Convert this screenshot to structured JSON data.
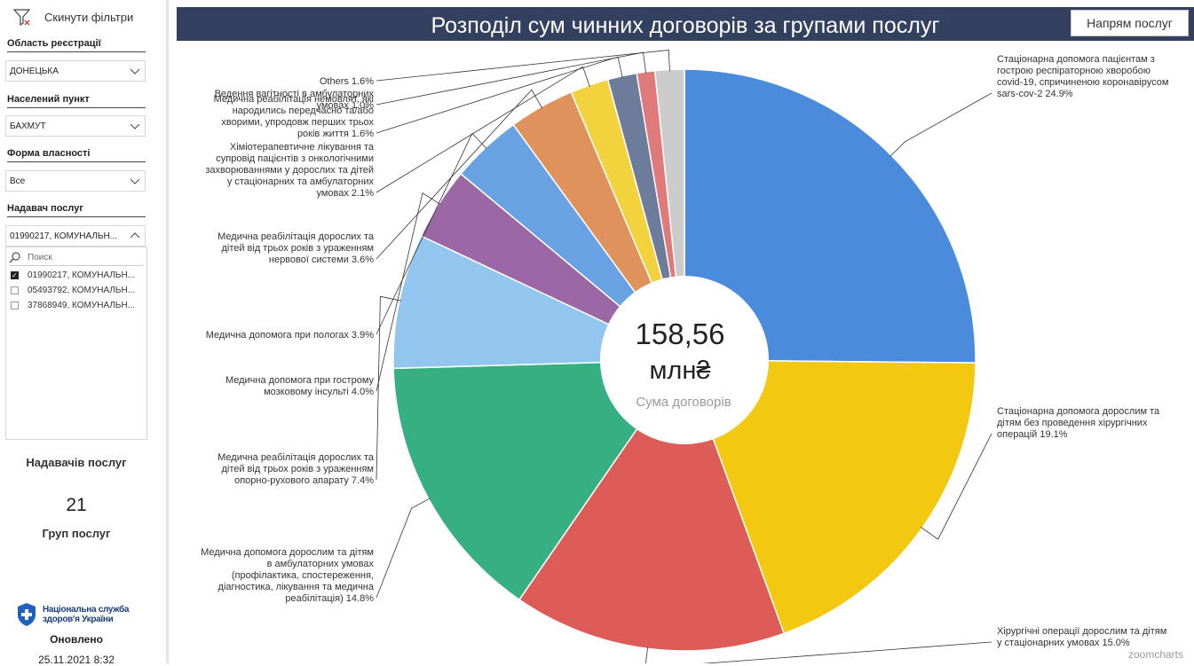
{
  "sidebar": {
    "reset_label": "Скинути фільтри",
    "filters": [
      {
        "label": "Область реєстрації",
        "value": "ДОНЕЦЬКА"
      },
      {
        "label": "Населений пункт",
        "value": "БАХМУТ"
      },
      {
        "label": "Форма власності",
        "value": "Все"
      },
      {
        "label": "Надавач послуг",
        "value": "01990217, КОМУНАЛЬН..."
      }
    ],
    "search_placeholder": "Поиск",
    "options": [
      {
        "label": "01990217, КОМУНАЛЬН...",
        "checked": true
      },
      {
        "label": "05493792, КОМУНАЛЬН...",
        "checked": false
      },
      {
        "label": "37868949, КОМУНАЛЬН...",
        "checked": false
      }
    ],
    "kpi_providers_label": "Надавачів послуг",
    "kpi_groups_value": "21",
    "kpi_groups_label": "Груп послуг",
    "logo_text_1": "Національна служба",
    "logo_text_2": "здоров'я України",
    "updated_label": "Оновлено",
    "updated_value": "25.11.2021 8:32"
  },
  "chart": {
    "title": "Розподіл сум чинних договорів за групами послуг",
    "button_label": "Напрям послуг",
    "center_value_1": "158,56",
    "center_value_2": "млн₴",
    "center_caption": "Сума договорів",
    "watermark": "zoomcharts"
  },
  "chart_data": {
    "type": "pie",
    "title": "Розподіл сум чинних договорів за групами послуг",
    "total": "158,56 млн₴",
    "slices": [
      {
        "name": "Стаціонарна допомога пацієнтам з гострою респіраторною хворобою covid-19, спричиненою коронавірусом sars-cov-2",
        "percent": 24.9,
        "color": "#4a8cdb",
        "label_lines": [
          "Стаціонарна допомога пацієнтам з",
          "гострою респіраторною хворобою",
          "covid-19, спричиненою коронавірусом",
          "sars-cov-2 24.9%"
        ]
      },
      {
        "name": "Стаціонарна допомога дорослим та дітям без проведення хірургічних операцій",
        "percent": 19.1,
        "color": "#f2c811",
        "label_lines": [
          "Стаціонарна допомога дорослим та",
          "дітям без проведення хірургічних",
          "операцій 19.1%"
        ]
      },
      {
        "name": "Хірургічні операції дорослим та дітям у стаціонарних умовах",
        "percent": 15.0,
        "color": "#dd5c57",
        "label_lines": [
          "Хірургічні операції дорослим та дітям",
          "у стаціонарних умовах 15.0%"
        ]
      },
      {
        "name": "Медична допомога дорослим та дітям в амбулаторних умовах (профілактика, спостереження, діагностика, лікування та медична реабілітація)",
        "percent": 14.8,
        "color": "#36b083",
        "label_lines": [
          "Медична допомога дорослим та дітям",
          "в амбулаторних умовах",
          "(профілактика, спостереження,",
          "діагностика, лікування та медична",
          "реабілітація) 14.8%"
        ]
      },
      {
        "name": "Медична реабілітація дорослих та дітей від трьох років з ураженням опорно-рухового апарату",
        "percent": 7.4,
        "color": "#92c6ef",
        "label_lines": [
          "Медична реабілітація дорослих та",
          "дітей від трьох років з ураженням",
          "опорно-рухового апарату 7.4%"
        ]
      },
      {
        "name": "Медична допомога при гострому мозковому інсульті",
        "percent": 4.0,
        "color": "#9b67a4",
        "label_lines": [
          "Медична допомога при гострому",
          "мозковому інсульті 4.0%"
        ]
      },
      {
        "name": "Медична допомога при пологах",
        "percent": 3.9,
        "color": "#68a2e3",
        "label_lines": [
          "Медична допомога при пологах 3.9%"
        ]
      },
      {
        "name": "Медична реабілітація дорослих та дітей від трьох років з ураженням нервової системи",
        "percent": 3.6,
        "color": "#e0925c",
        "label_lines": [
          "Медична реабілітація дорослих та",
          "дітей від трьох років з ураженням",
          "нервової системи 3.6%"
        ]
      },
      {
        "name": "Хіміотерапевтичне лікування та супровід пацієнтів з онкологічними захворюваннями у дорослих та дітей у стаціонарних та амбулаторних умовах",
        "percent": 2.1,
        "color": "#f2d33e",
        "label_lines": [
          "Хіміотерапевтичне лікування та",
          "супровід пацієнтів з онкологічними",
          "захворюваннями у дорослих та дітей",
          "у стаціонарних та амбулаторних",
          "умовах 2.1%"
        ]
      },
      {
        "name": "Медична реабілітація немовлят, які народились передчасно та/або хворими, упродовж перших трьох років життя",
        "percent": 1.6,
        "color": "#6e7c9c",
        "label_lines": [
          "Медична реабілітація немовлят, які",
          "народились передчасно та/або",
          "хворими, упродовж перших трьох",
          "років життя 1.6%"
        ]
      },
      {
        "name": "Ведення вагітності в амбулаторних умовах",
        "percent": 1.0,
        "color": "#e0797a",
        "label_lines": [
          "Ведення вагітності в амбулаторних",
          "умовах 1.0%"
        ]
      },
      {
        "name": "Others",
        "percent": 1.6,
        "color": "#cccccc",
        "label_lines": [
          "Others 1.6%"
        ]
      }
    ]
  }
}
